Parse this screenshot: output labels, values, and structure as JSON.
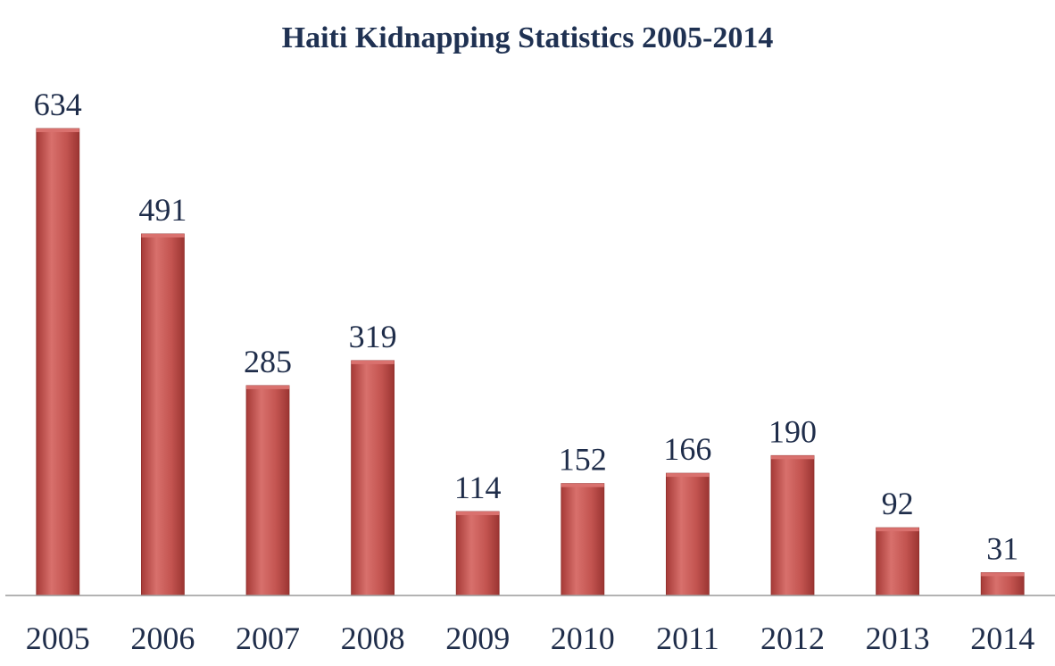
{
  "chart_data": {
    "type": "bar",
    "title": "Haiti Kidnapping Statistics 2005-2014",
    "categories": [
      "2005",
      "2006",
      "2007",
      "2008",
      "2009",
      "2010",
      "2011",
      "2012",
      "2013",
      "2014"
    ],
    "values": [
      634,
      491,
      285,
      319,
      114,
      152,
      166,
      190,
      92,
      31
    ],
    "xlabel": "",
    "ylabel": "",
    "ylim": [
      0,
      634
    ],
    "grid": false,
    "legend": "none",
    "data_labels": true,
    "colors": {
      "bar": "#c0504d",
      "bar_light": "#d9716e",
      "bar_dark": "#8f2f2c",
      "axis": "#9a9a9a",
      "text": "#1f2d4a",
      "title": "#1f3152"
    }
  }
}
